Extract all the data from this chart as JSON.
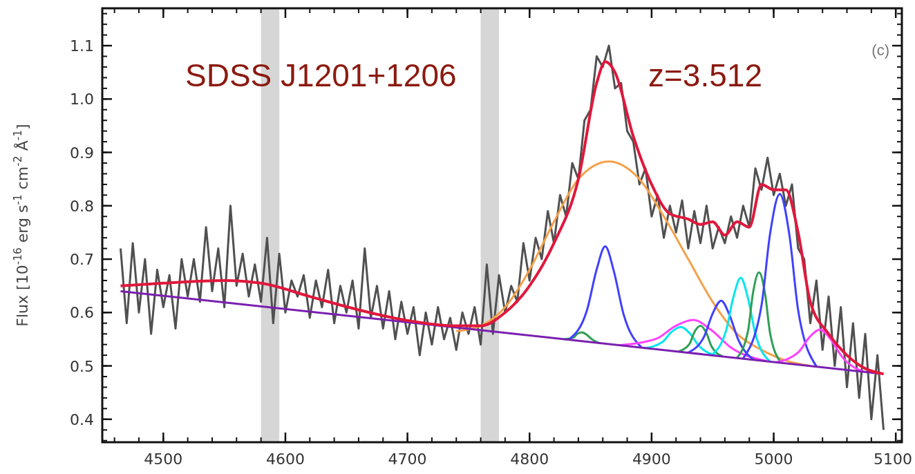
{
  "chart_data": {
    "type": "line",
    "ylabel": "Flux [10$^{-16}$ erg s$^{-1}$ cm$^{-2}$ Å$^{-1}$]",
    "annotations": [
      "SDSS J1201+1206",
      "z=3.512",
      "(c)"
    ],
    "xlim": [
      4450,
      5105
    ],
    "xticks": [
      4500,
      4600,
      4700,
      4800,
      4900,
      5000,
      5100
    ],
    "ylim": [
      0.357,
      1.17
    ],
    "yticks": [
      0.4,
      0.5,
      0.6,
      0.7,
      0.8,
      0.9,
      {
        "value": 1,
        "label": "1.0"
      },
      1.1
    ],
    "bands": [
      {
        "axis": "x",
        "from": 4580,
        "to": 4595,
        "color": "#d6d6d6"
      },
      {
        "axis": "x",
        "from": 4760,
        "to": 4775,
        "color": "#d6d6d6"
      }
    ],
    "series": [
      {
        "color": "#505050",
        "x": [
          4465,
          4470,
          4475,
          4480,
          4485,
          4490,
          4495,
          4500,
          4505,
          4510,
          4515,
          4520,
          4525,
          4530,
          4535,
          4540,
          4545,
          4550,
          4555,
          4560,
          4565,
          4570,
          4575,
          4580,
          4585,
          4590,
          4595,
          4600,
          4605,
          4610,
          4615,
          4620,
          4625,
          4630,
          4635,
          4640,
          4645,
          4650,
          4655,
          4660,
          4665,
          4670,
          4675,
          4680,
          4685,
          4690,
          4695,
          4700,
          4705,
          4710,
          4715,
          4720,
          4725,
          4730,
          4735,
          4740,
          4745,
          4750,
          4755,
          4760,
          4765,
          4770,
          4775,
          4780,
          4785,
          4790,
          4795,
          4800,
          4805,
          4810,
          4815,
          4820,
          4825,
          4830,
          4835,
          4840,
          4845,
          4850,
          4855,
          4860,
          4865,
          4870,
          4875,
          4880,
          4885,
          4890,
          4895,
          4900,
          4905,
          4910,
          4915,
          4920,
          4925,
          4930,
          4935,
          4940,
          4945,
          4950,
          4955,
          4960,
          4965,
          4970,
          4975,
          4980,
          4985,
          4990,
          4995,
          5000,
          5005,
          5010,
          5015,
          5020,
          5025,
          5030,
          5035,
          5040,
          5045,
          5050,
          5055,
          5060,
          5065,
          5070,
          5075,
          5080,
          5085,
          5090
        ],
        "values": [
          0.72,
          0.58,
          0.73,
          0.6,
          0.7,
          0.56,
          0.68,
          0.61,
          0.67,
          0.57,
          0.7,
          0.63,
          0.7,
          0.62,
          0.76,
          0.64,
          0.72,
          0.61,
          0.8,
          0.65,
          0.71,
          0.63,
          0.69,
          0.62,
          0.74,
          0.58,
          0.71,
          0.6,
          0.66,
          0.63,
          0.67,
          0.59,
          0.66,
          0.61,
          0.68,
          0.58,
          0.65,
          0.6,
          0.66,
          0.57,
          0.72,
          0.59,
          0.65,
          0.57,
          0.64,
          0.55,
          0.62,
          0.56,
          0.61,
          0.52,
          0.6,
          0.54,
          0.61,
          0.55,
          0.59,
          0.53,
          0.6,
          0.56,
          0.61,
          0.54,
          0.69,
          0.56,
          0.67,
          0.6,
          0.65,
          0.62,
          0.73,
          0.66,
          0.74,
          0.7,
          0.79,
          0.73,
          0.82,
          0.78,
          0.88,
          0.85,
          0.96,
          0.98,
          1.08,
          1.06,
          1.1,
          1.02,
          1.03,
          0.94,
          0.92,
          0.84,
          0.87,
          0.78,
          0.82,
          0.74,
          0.8,
          0.75,
          0.81,
          0.72,
          0.79,
          0.73,
          0.8,
          0.72,
          0.76,
          0.73,
          0.78,
          0.74,
          0.8,
          0.76,
          0.87,
          0.83,
          0.89,
          0.82,
          0.86,
          0.8,
          0.84,
          0.72,
          0.7,
          0.58,
          0.66,
          0.53,
          0.63,
          0.5,
          0.61,
          0.46,
          0.58,
          0.44,
          0.56,
          0.4,
          0.52,
          0.38
        ]
      },
      {
        "color": "#f5a04a",
        "x": [
          4740,
          4760,
          4780,
          4800,
          4820,
          4840,
          4865,
          4890,
          4910,
          4930,
          4950,
          4970,
          4990,
          5010,
          5030
        ],
        "values": [
          0.565,
          0.575,
          0.61,
          0.68,
          0.77,
          0.85,
          0.883,
          0.85,
          0.78,
          0.7,
          0.62,
          0.56,
          0.53,
          0.51,
          0.5
        ]
      },
      {
        "color": "#2e9e55",
        "x": [
          4828,
          4836,
          4839,
          4843,
          4847,
          4851,
          4858
        ],
        "values": [
          0.55,
          0.553,
          0.56,
          0.563,
          0.558,
          0.55,
          0.542
        ]
      },
      {
        "color": "#4040ff",
        "x": [
          4832,
          4847,
          4855,
          4862,
          4869,
          4877,
          4892
        ],
        "values": [
          0.549,
          0.604,
          0.681,
          0.724,
          0.678,
          0.597,
          0.534
        ]
      },
      {
        "color": "#ff40ff",
        "x": [
          4874,
          4904,
          4919,
          4934,
          4949,
          4964,
          4994
        ],
        "values": [
          0.539,
          0.551,
          0.574,
          0.586,
          0.567,
          0.536,
          0.509
        ]
      },
      {
        "color": "#00e5ee",
        "x": [
          4894,
          4909,
          4916,
          4924,
          4932,
          4939,
          4954
        ],
        "values": [
          0.533,
          0.545,
          0.563,
          0.573,
          0.559,
          0.537,
          0.519
        ]
      },
      {
        "color": "#2e9e55",
        "x": [
          4922,
          4931,
          4935,
          4940,
          4945,
          4949,
          4958
        ],
        "values": [
          0.527,
          0.541,
          0.563,
          0.575,
          0.561,
          0.537,
          0.518
        ]
      },
      {
        "color": "#4040ff",
        "x": [
          4930,
          4943,
          4950,
          4957,
          4964,
          4971,
          4984
        ],
        "values": [
          0.525,
          0.555,
          0.598,
          0.622,
          0.594,
          0.549,
          0.511
        ]
      },
      {
        "color": "#00e5ee",
        "x": [
          4949,
          4961,
          4967,
          4973,
          4979,
          4985,
          4997
        ],
        "values": [
          0.52,
          0.566,
          0.629,
          0.665,
          0.626,
          0.56,
          0.508
        ]
      },
      {
        "color": "#2e9e55",
        "x": [
          4970,
          4979,
          4983,
          4988,
          4993,
          4997,
          5006
        ],
        "values": [
          0.515,
          0.566,
          0.636,
          0.675,
          0.634,
          0.562,
          0.506
        ]
      },
      {
        "color": "#4040ff",
        "x": [
          4975,
          4990,
          4997,
          5005,
          5013,
          5020,
          5035
        ],
        "values": [
          0.514,
          0.613,
          0.747,
          0.822,
          0.743,
          0.605,
          0.499
        ]
      },
      {
        "color": "#ff40ff",
        "x": [
          5002,
          5020,
          5029,
          5038,
          5047,
          5056,
          5074
        ],
        "values": [
          0.507,
          0.525,
          0.553,
          0.568,
          0.549,
          0.517,
          0.489
        ]
      },
      {
        "color": "#7a1fb0",
        "x": [
          4465,
          5090
        ],
        "values": [
          0.64,
          0.485
        ]
      },
      {
        "color": "#e0183c",
        "x": [
          4465,
          4500,
          4550,
          4580,
          4620,
          4660,
          4700,
          4740,
          4760,
          4780,
          4800,
          4820,
          4840,
          4855,
          4862,
          4870,
          4885,
          4900,
          4915,
          4930,
          4940,
          4950,
          4960,
          4970,
          4980,
          4990,
          5000,
          5010,
          5020,
          5030,
          5045,
          5060,
          5075,
          5090
        ],
        "values": [
          0.65,
          0.655,
          0.66,
          0.655,
          0.63,
          0.605,
          0.585,
          0.575,
          0.575,
          0.6,
          0.65,
          0.73,
          0.85,
          1.03,
          1.07,
          1.05,
          0.93,
          0.84,
          0.785,
          0.775,
          0.765,
          0.77,
          0.745,
          0.77,
          0.76,
          0.84,
          0.83,
          0.83,
          0.75,
          0.62,
          0.56,
          0.52,
          0.495,
          0.485
        ]
      }
    ]
  }
}
